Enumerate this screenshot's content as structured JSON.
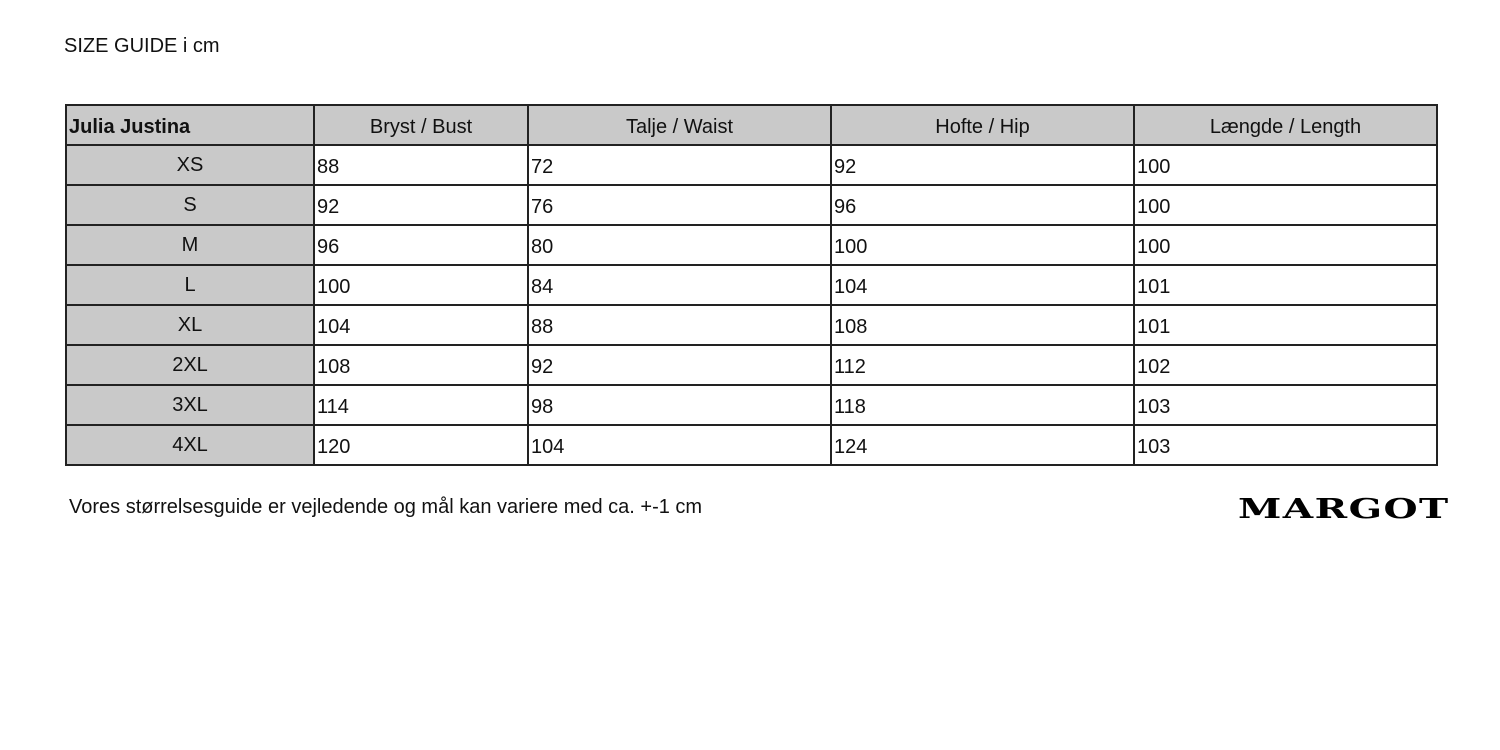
{
  "title": "SIZE GUIDE i cm",
  "table": {
    "headers": [
      "Julia Justina",
      "Bryst / Bust",
      "Talje / Waist",
      "Hofte / Hip",
      "Længde / Length"
    ],
    "rows": [
      {
        "size": "XS",
        "values": [
          "88",
          "72",
          "92",
          "100"
        ]
      },
      {
        "size": "S",
        "values": [
          "92",
          "76",
          "96",
          "100"
        ]
      },
      {
        "size": "M",
        "values": [
          "96",
          "80",
          "100",
          "100"
        ]
      },
      {
        "size": "L",
        "values": [
          "100",
          "84",
          "104",
          "101"
        ]
      },
      {
        "size": "XL",
        "values": [
          "104",
          "88",
          "108",
          "101"
        ]
      },
      {
        "size": "2XL",
        "values": [
          "108",
          "92",
          "112",
          "102"
        ]
      },
      {
        "size": "3XL",
        "values": [
          "114",
          "98",
          "118",
          "103"
        ]
      },
      {
        "size": "4XL",
        "values": [
          "120",
          "104",
          "124",
          "103"
        ]
      }
    ]
  },
  "note": "Vores størrelsesguide er vejledende og mål kan variere med ca. +-1 cm",
  "logo": "MARGOT",
  "colors": {
    "header_bg": "#c9c9c9",
    "border": "#222222"
  }
}
